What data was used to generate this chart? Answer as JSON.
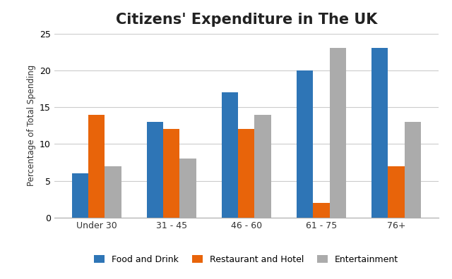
{
  "title": "Citizens' Expenditure in The UK",
  "ylabel": "Percentage of Total Spending",
  "categories": [
    "Under 30",
    "31 - 45",
    "46 - 60",
    "61 - 75",
    "76+"
  ],
  "series": {
    "Food and Drink": [
      6,
      13,
      17,
      20,
      23
    ],
    "Restaurant and Hotel": [
      14,
      12,
      12,
      2,
      7
    ],
    "Entertainment": [
      7,
      8,
      14,
      23,
      13
    ]
  },
  "colors": {
    "Food and Drink": "#2E75B6",
    "Restaurant and Hotel": "#E8640A",
    "Entertainment": "#ABABAB"
  },
  "ylim": [
    0,
    25
  ],
  "yticks": [
    0,
    5,
    10,
    15,
    20,
    25
  ],
  "outer_background": "#FFFFFF",
  "inner_background": "#FFFFFF",
  "title_fontsize": 15,
  "bar_width": 0.22,
  "grid_color": "#CCCCCC",
  "grid_linewidth": 0.8,
  "border_color": "#CCCCCC"
}
